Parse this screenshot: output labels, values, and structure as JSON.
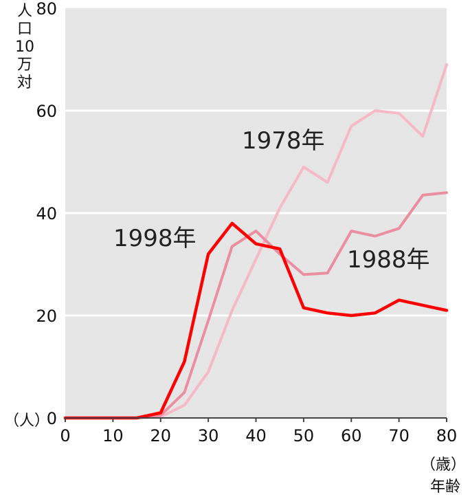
{
  "chart_data": {
    "type": "line",
    "ylabel_lines": [
      "人",
      "口",
      "10",
      "万",
      "対"
    ],
    "y_unit": "（人）",
    "x_unit_lines": [
      "（歳）",
      "年齢"
    ],
    "xlim": [
      0,
      80
    ],
    "ylim": [
      0,
      80
    ],
    "x_ticks": [
      0,
      10,
      20,
      30,
      40,
      50,
      60,
      70,
      80
    ],
    "y_ticks": [
      0,
      20,
      40,
      60,
      80
    ],
    "grid": true,
    "background": "#e6e6e6",
    "series": [
      {
        "name": "1978年",
        "color": "#f6b9c7",
        "x": [
          0,
          15,
          20,
          25,
          30,
          35,
          40,
          45,
          50,
          55,
          60,
          65,
          70,
          75,
          80
        ],
        "values": [
          0,
          0,
          0.2,
          2.5,
          9,
          21,
          31,
          41,
          49,
          46,
          57,
          60,
          59.5,
          55,
          69
        ]
      },
      {
        "name": "1988年",
        "color": "#ec8ea2",
        "x": [
          0,
          15,
          20,
          25,
          30,
          35,
          40,
          45,
          50,
          55,
          60,
          65,
          70,
          75,
          80
        ],
        "values": [
          0,
          0,
          0.5,
          5,
          19,
          33.5,
          36.5,
          32,
          28,
          28.3,
          36.5,
          35.5,
          37,
          43.5,
          44
        ]
      },
      {
        "name": "1998年",
        "color": "#ff0000",
        "x": [
          0,
          15,
          20,
          25,
          30,
          35,
          40,
          45,
          50,
          55,
          60,
          65,
          70,
          75,
          80
        ],
        "values": [
          0,
          0,
          1,
          11,
          32,
          38,
          34,
          33,
          21.5,
          20.5,
          20,
          20.5,
          23,
          22,
          21
        ]
      }
    ]
  }
}
